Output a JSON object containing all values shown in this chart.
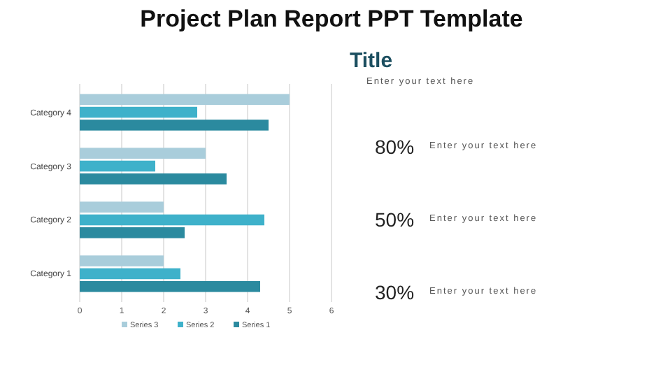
{
  "chart_data": [
    {
      "type": "bar",
      "title": "Project Plan Report PPT Template",
      "orientation": "horizontal",
      "categories": [
        "Category 4",
        "Category 3",
        "Category 2",
        "Category 1"
      ],
      "series": [
        {
          "name": "Series 3",
          "color": "#a9cddb",
          "values": [
            5.0,
            3.0,
            2.0,
            2.0
          ]
        },
        {
          "name": "Series 2",
          "color": "#3eb1ca",
          "values": [
            2.8,
            1.8,
            4.4,
            2.4
          ]
        },
        {
          "name": "Series 1",
          "color": "#2b8a9f",
          "values": [
            4.5,
            3.5,
            2.5,
            4.3
          ]
        }
      ],
      "xlim": [
        0,
        6
      ],
      "xticks": [
        0,
        1,
        2,
        3,
        4,
        5,
        6
      ],
      "grid": "x",
      "legend": "bottom"
    },
    {
      "type": "other",
      "title": "Title",
      "subtitle": "Enter your text here",
      "annotations": [
        "80%",
        "Enter your text here",
        "50%",
        "Enter your text here",
        "30%",
        "Enter your text here"
      ]
    }
  ]
}
